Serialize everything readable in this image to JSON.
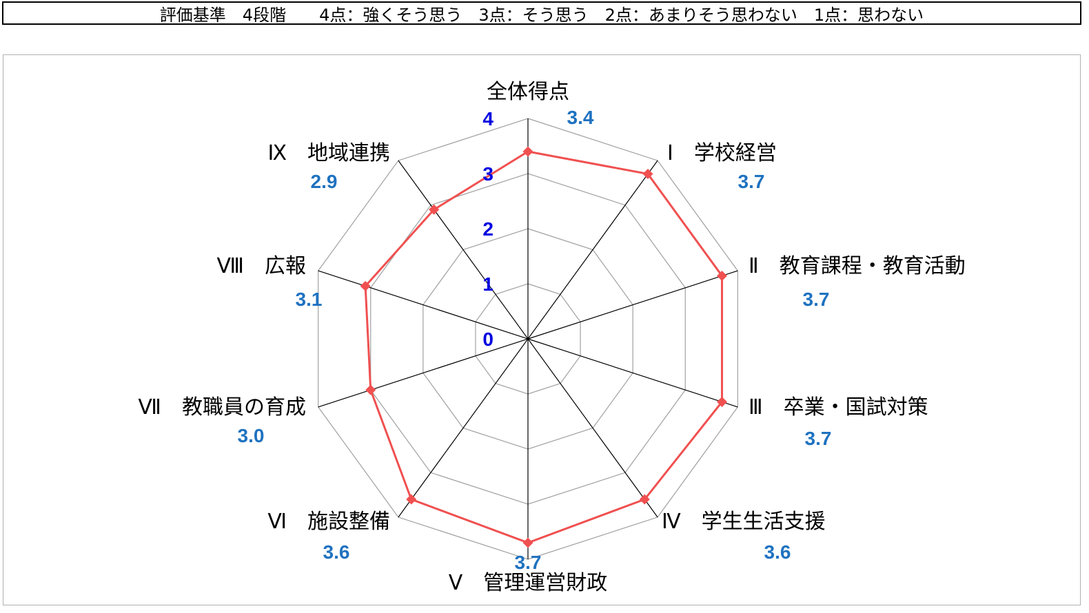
{
  "header": {
    "criteria_text": "評価基準　4段階　　4点：強くそう思う　3点：そう思う　2点：あまりそう思わない　1点：思わない"
  },
  "chart_data": {
    "type": "radar",
    "axis_range": [
      0,
      4
    ],
    "ticks": [
      "0",
      "1",
      "2",
      "3",
      "4"
    ],
    "categories": [
      "全体得点",
      "Ⅰ　学校経営",
      "Ⅱ　教育課程・教育活動",
      "Ⅲ　卒業・国試対策",
      "Ⅳ　学生生活支援",
      "Ⅴ　管理運営財政",
      "Ⅵ　施設整備",
      "Ⅶ　教職員の育成",
      "Ⅷ　広報",
      "Ⅸ　地域連携"
    ],
    "values": [
      3.4,
      3.7,
      3.7,
      3.7,
      3.6,
      3.7,
      3.6,
      3.0,
      3.1,
      2.9
    ],
    "value_labels": [
      "3.4",
      "3.7",
      "3.7",
      "3.7",
      "3.6",
      "3.7",
      "3.6",
      "3.0",
      "3.1",
      "2.9"
    ],
    "grid": true,
    "legend": "none",
    "colors": {
      "series": "#f05050",
      "grid": "#a0a0a0",
      "spoke": "#000000",
      "value_label": "#1f72c0",
      "tick_label": "#0000e0"
    }
  }
}
